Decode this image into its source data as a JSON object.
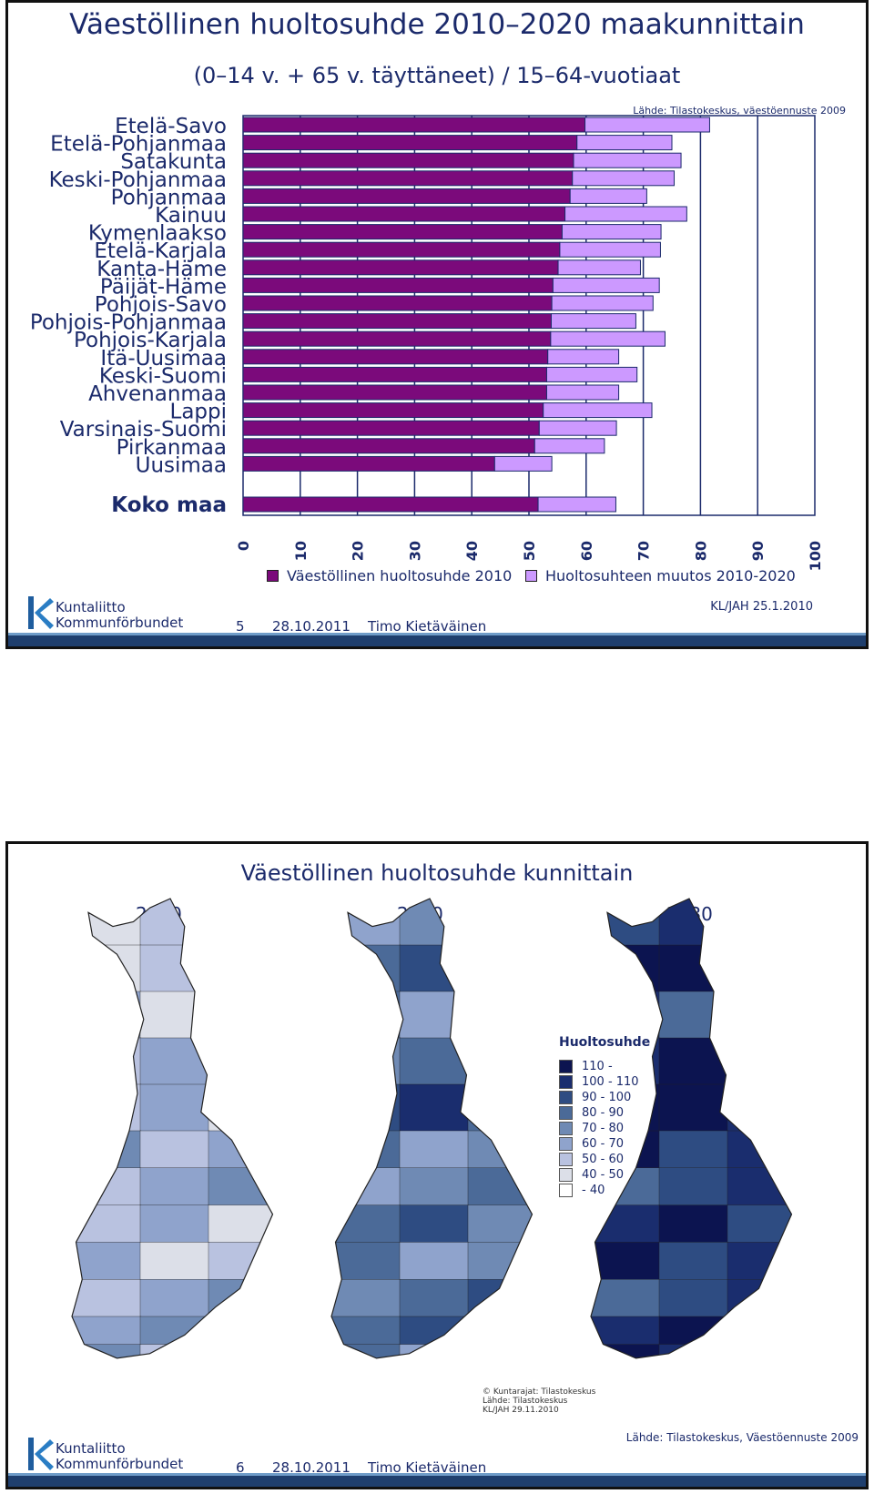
{
  "slide1": {
    "title": "Väestöllinen huoltosuhde 2010–2020 maakunnittain",
    "subtitle": "(0–14 v. + 65 v. täyttäneet) / 15–64-vuotiaat",
    "source": "Lähde: Tilastokeskus, väestöennuste 2009",
    "credit": "KL/JAH 25.1.2010",
    "footer": {
      "page": "5",
      "date": "28.10.2011",
      "author": "Timo Kietäväinen"
    }
  },
  "logo": {
    "line1": "Kuntaliitto",
    "line2": "Kommunförbundet"
  },
  "chart_data": {
    "type": "bar",
    "orientation": "horizontal",
    "stacked": true,
    "categories": [
      "Etelä-Savo",
      "Etelä-Pohjanmaa",
      "Satakunta",
      "Keski-Pohjanmaa",
      "Pohjanmaa",
      "Kainuu",
      "Kymenlaakso",
      "Etelä-Karjala",
      "Kanta-Häme",
      "Päijät-Häme",
      "Pohjois-Savo",
      "Pohjois-Pohjanmaa",
      "Pohjois-Karjala",
      "Itä-Uusimaa",
      "Keski-Suomi",
      "Ahvenanmaa",
      "Lappi",
      "Varsinais-Suomi",
      "Pirkanmaa",
      "Uusimaa"
    ],
    "total_category": "Koko maa",
    "series": [
      {
        "name": "Väestöllinen huoltosuhde 2010",
        "color": "#7b0a7b",
        "values": [
          59.8,
          58.4,
          57.8,
          57.6,
          57.2,
          56.3,
          55.8,
          55.4,
          55.1,
          54.2,
          54.0,
          53.9,
          53.8,
          53.3,
          53.1,
          53.1,
          52.5,
          51.8,
          51.0,
          44.0
        ],
        "total": 51.6
      },
      {
        "name": "Huoltosuhteen muutos 2010-2020",
        "color": "#cc99ff",
        "values": [
          21.8,
          16.6,
          18.8,
          17.8,
          13.4,
          21.3,
          17.3,
          17.6,
          14.4,
          18.6,
          17.7,
          14.8,
          20.0,
          12.4,
          15.8,
          12.6,
          19.0,
          13.5,
          12.2,
          10.0
        ],
        "total": 13.6
      }
    ],
    "xlim": [
      0,
      100
    ],
    "xticks": [
      "0",
      "10",
      "20",
      "30",
      "40",
      "50",
      "60",
      "70",
      "80",
      "90",
      "100"
    ],
    "legend": "bottom"
  },
  "slide2": {
    "title": "Väestöllinen huoltosuhde kunnittain",
    "years": [
      "2010",
      "2020",
      "2030"
    ],
    "legend_title": "Huoltosuhde",
    "legend": [
      {
        "label": "110 -",
        "color": "#0c1450"
      },
      {
        "label": "100 - 110",
        "color": "#1a2d6e"
      },
      {
        "label": "90 - 100",
        "color": "#2e4c82"
      },
      {
        "label": "80 - 90",
        "color": "#4b6a98"
      },
      {
        "label": "70 - 80",
        "color": "#6f8ab4"
      },
      {
        "label": "60 - 70",
        "color": "#8fa3cc"
      },
      {
        "label": "50 - 60",
        "color": "#b9c2e0"
      },
      {
        "label": "40 - 50",
        "color": "#dcdfe8"
      },
      {
        "label": "- 40",
        "color": "#ffffff"
      }
    ],
    "map_source": [
      "© Kuntarajat: Tilastokeskus",
      "Lähde: Tilastokeskus",
      "KL/JAH 29.11.2010"
    ],
    "map_levels": [
      {
        "year": "2010",
        "levels": [
          2,
          1,
          2,
          3,
          2,
          3,
          3,
          2,
          2,
          3,
          3,
          3
        ]
      },
      {
        "year": "2020",
        "levels": [
          4,
          5,
          4,
          5,
          6,
          4,
          4,
          5,
          4,
          5,
          5,
          4
        ]
      },
      {
        "year": "2030",
        "levels": [
          7,
          8,
          6,
          8,
          8,
          7,
          6,
          7,
          7,
          6,
          7,
          8
        ]
      }
    ],
    "source": "Lähde: Tilastokeskus, Väestöennuste 2009",
    "footer": {
      "page": "6",
      "date": "28.10.2011",
      "author": "Timo Kietäväinen"
    }
  }
}
